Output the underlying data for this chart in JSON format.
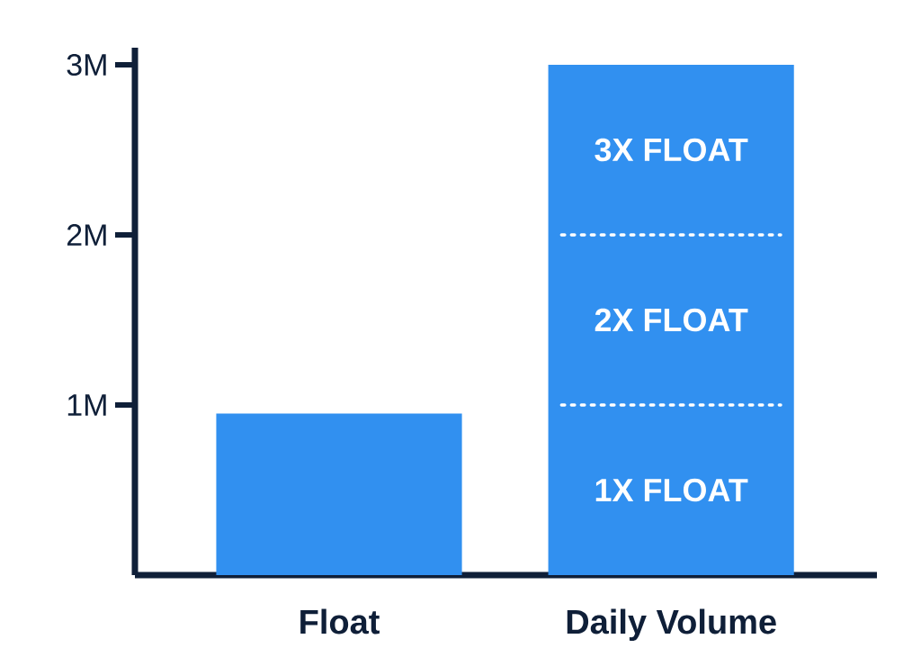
{
  "chart_data": {
    "type": "bar",
    "stacked": true,
    "categories": [
      "Float",
      "Daily Volume"
    ],
    "series": [
      {
        "color": "#3190f0",
        "values": [
          0.95,
          null
        ]
      },
      {
        "name": "1X FLOAT",
        "color": "#3190f0",
        "values": [
          null,
          1
        ]
      },
      {
        "name": "2X FLOAT",
        "color": "#3190f0",
        "values": [
          null,
          1
        ]
      },
      {
        "name": "3X FLOAT",
        "color": "#3190f0",
        "values": [
          null,
          1
        ]
      }
    ],
    "ylim": [
      0,
      3.1
    ],
    "yticks": [
      {
        "value": 1,
        "label": "1M"
      },
      {
        "value": 2,
        "label": "2M"
      },
      {
        "value": 3,
        "label": "3M"
      }
    ]
  }
}
